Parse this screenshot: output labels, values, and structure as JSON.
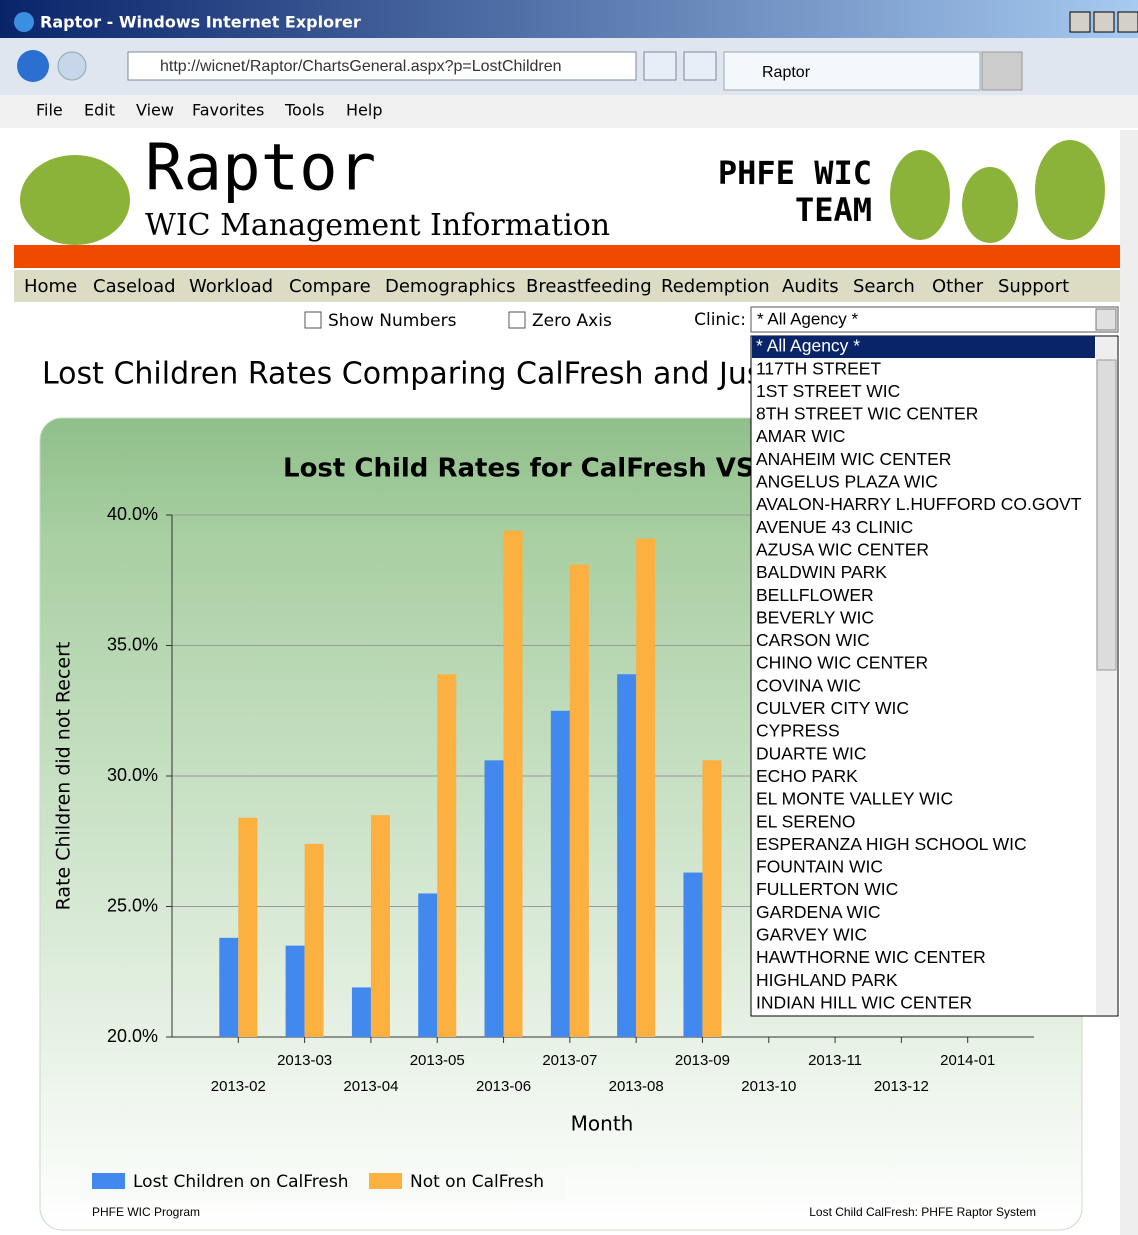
{
  "window": {
    "title": "Raptor - Windows Internet Explorer",
    "url": "http://wicnet/Raptor/ChartsGeneral.aspx?p=LostChildren",
    "tab": "Raptor"
  },
  "menu": [
    "File",
    "Edit",
    "View",
    "Favorites",
    "Tools",
    "Help"
  ],
  "header": {
    "title": "Raptor",
    "subtitle": "WIC Management Information",
    "team_line1": "PHFE WIC",
    "team_line2": "TEAM"
  },
  "nav": [
    "Home",
    "Caseload",
    "Workload",
    "Compare",
    "Demographics",
    "Breastfeeding",
    "Redemption",
    "Audits",
    "Search",
    "Other",
    "Support"
  ],
  "options": {
    "show_numbers": "Show Numbers",
    "zero_axis": "Zero Axis",
    "clinic_label": "Clinic:",
    "clinic_value": "* All Agency *"
  },
  "clinic_list": [
    "* All Agency *",
    "117TH STREET",
    "1ST STREET WIC",
    "8TH STREET WIC CENTER",
    "AMAR WIC",
    "ANAHEIM WIC CENTER",
    "ANGELUS PLAZA WIC",
    "AVALON-HARRY L.HUFFORD CO.GOVT",
    "AVENUE 43 CLINIC",
    "AZUSA WIC CENTER",
    "BALDWIN PARK",
    "BELLFLOWER",
    "BEVERLY WIC",
    "CARSON WIC",
    "CHINO WIC CENTER",
    "COVINA WIC",
    "CULVER CITY WIC",
    "CYPRESS",
    "DUARTE WIC",
    "ECHO PARK",
    "EL MONTE VALLEY WIC",
    "EL SERENO",
    "ESPERANZA HIGH SCHOOL WIC",
    "FOUNTAIN WIC",
    "FULLERTON WIC",
    "GARDENA WIC",
    "GARVEY WIC",
    "HAWTHORNE WIC CENTER",
    "HIGHLAND PARK",
    "INDIAN HILL WIC CENTER"
  ],
  "page_title": "Lost Children Rates Comparing CalFresh and Just",
  "chart_footer": {
    "left": "PHFE WIC Program",
    "right": "Lost Child CalFresh: PHFE Raptor System"
  },
  "chart_data": {
    "type": "bar",
    "title": "Lost Child Rates for CalFresh VS Ju",
    "x_label": "Month",
    "y_label": "Rate Children did not Recert",
    "categories": [
      "2013-02",
      "2013-03",
      "2013-04",
      "2013-05",
      "2013-06",
      "2013-07",
      "2013-08",
      "2013-09",
      "2013-10",
      "2013-11",
      "2013-12",
      "2014-01"
    ],
    "series": [
      {
        "name": "Lost Children on CalFresh",
        "color": "#4189ee",
        "values": [
          23.8,
          23.5,
          21.9,
          25.5,
          30.6,
          32.5,
          33.9,
          26.3,
          null,
          null,
          null,
          null
        ]
      },
      {
        "name": "Not on CalFresh",
        "color": "#fbb040",
        "values": [
          28.4,
          27.4,
          28.5,
          33.9,
          39.4,
          38.1,
          39.1,
          30.6,
          null,
          null,
          null,
          null
        ]
      }
    ],
    "ylim": [
      20,
      40
    ],
    "yticks": [
      {
        "value": 20,
        "label": "20.0%"
      },
      {
        "value": 25,
        "label": "25.0%"
      },
      {
        "value": 30,
        "label": "30.0%"
      },
      {
        "value": 35,
        "label": "35.0%"
      },
      {
        "value": 40,
        "label": "40.0%"
      }
    ],
    "grid": true,
    "legend": "bottom-left"
  }
}
